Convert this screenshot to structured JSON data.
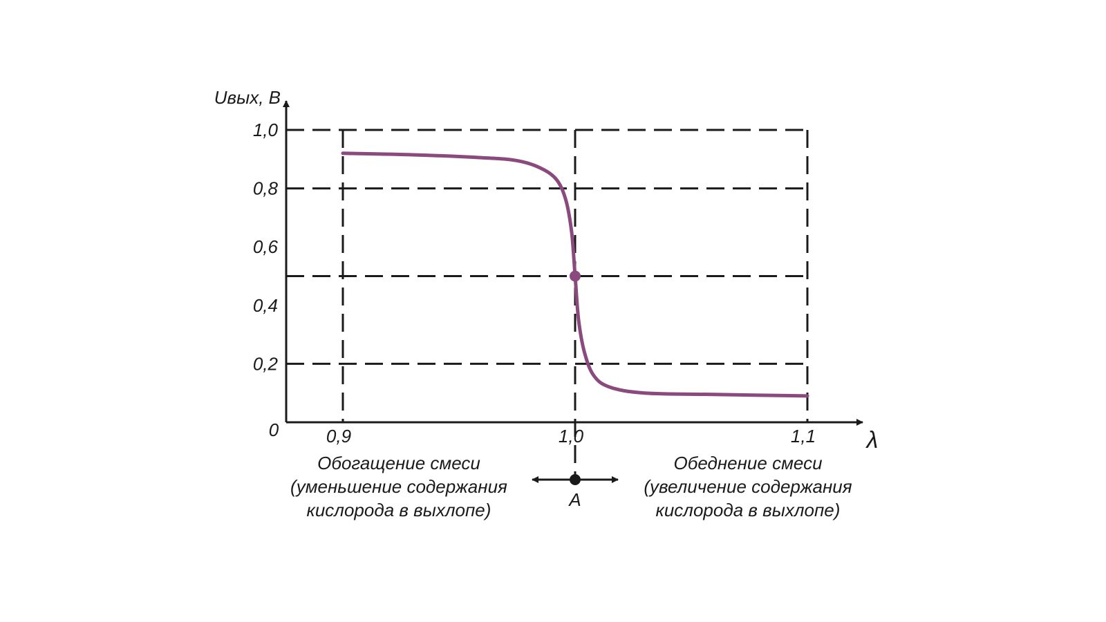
{
  "chart_data": {
    "type": "line",
    "ylabel": "Uвых, В",
    "xlabel": "λ",
    "origin_label": "0",
    "xlim": [
      0.9,
      1.1
    ],
    "ylim": [
      0,
      1.0
    ],
    "x_ticks": [
      {
        "value": 0.9,
        "label": "0,9"
      },
      {
        "value": 1.0,
        "label": "1,0"
      },
      {
        "value": 1.1,
        "label": "1,1"
      }
    ],
    "y_ticks": [
      {
        "value": 1.0,
        "label": "1,0"
      },
      {
        "value": 0.8,
        "label": "0,8"
      },
      {
        "value": 0.6,
        "label": "0,6"
      },
      {
        "value": 0.4,
        "label": "0,4"
      },
      {
        "value": 0.2,
        "label": "0,2"
      }
    ],
    "grid": "dashed",
    "grid_y": [
      1.0,
      0.8,
      0.5,
      0.2
    ],
    "grid_x": [
      0.9,
      1.0,
      1.1
    ],
    "series": [
      {
        "color": "#8b4a7e",
        "points": [
          [
            0.9,
            0.92
          ],
          [
            0.93,
            0.915
          ],
          [
            0.96,
            0.905
          ],
          [
            0.975,
            0.895
          ],
          [
            0.985,
            0.87
          ],
          [
            0.992,
            0.83
          ],
          [
            0.996,
            0.76
          ],
          [
            0.9985,
            0.65
          ],
          [
            1.0,
            0.5
          ],
          [
            1.0015,
            0.35
          ],
          [
            1.004,
            0.24
          ],
          [
            1.008,
            0.16
          ],
          [
            1.015,
            0.12
          ],
          [
            1.03,
            0.1
          ],
          [
            1.06,
            0.095
          ],
          [
            1.1,
            0.09
          ]
        ]
      }
    ],
    "marked_point": {
      "x": 1.0,
      "y": 0.5,
      "color": "#8b4a7e"
    },
    "annotation": {
      "point_label": "A",
      "point_x": 1.0,
      "left_lines": [
        "Обогащение смеси",
        "(уменьшение содержания",
        "кислорода в выхлопе)"
      ],
      "right_lines": [
        "Обеднение смеси",
        "(увеличение содержания",
        "кислорода в выхлопе)"
      ]
    }
  }
}
